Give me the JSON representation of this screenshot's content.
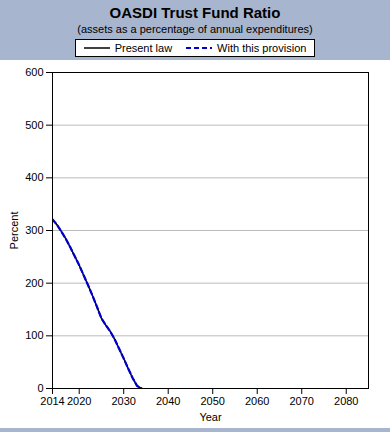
{
  "chart_data": {
    "type": "line",
    "title": "OASDI Trust Fund Ratio",
    "subtitle": "(assets as a percentage of annual expenditures)",
    "xlabel": "Year",
    "ylabel": "Percent",
    "x": [
      2014,
      2015,
      2016,
      2017,
      2018,
      2019,
      2020,
      2021,
      2022,
      2023,
      2024,
      2025,
      2026,
      2027,
      2028,
      2029,
      2030,
      2031,
      2032,
      2033,
      2034
    ],
    "series": [
      {
        "name": "Present law",
        "color": "#000000",
        "line_style": "solid",
        "values": [
          321,
          311,
          298,
          284,
          268,
          251,
          234,
          215,
          196,
          176,
          155,
          133,
          120,
          108,
          93,
          75,
          57,
          38,
          20,
          5,
          0
        ]
      },
      {
        "name": "With this provision",
        "color": "#0000cc",
        "line_style": "dashed",
        "values": [
          321,
          311,
          298,
          284,
          268,
          251,
          234,
          215,
          196,
          176,
          155,
          133,
          120,
          108,
          93,
          75,
          57,
          38,
          20,
          5,
          0
        ]
      }
    ],
    "xlim": [
      2014,
      2085
    ],
    "ylim": [
      0,
      600
    ],
    "xticks": [
      2014,
      2020,
      2030,
      2040,
      2050,
      2060,
      2070,
      2080
    ],
    "yticks": [
      0,
      100,
      200,
      300,
      400,
      500,
      600
    ],
    "grid": true,
    "legend": "top"
  }
}
